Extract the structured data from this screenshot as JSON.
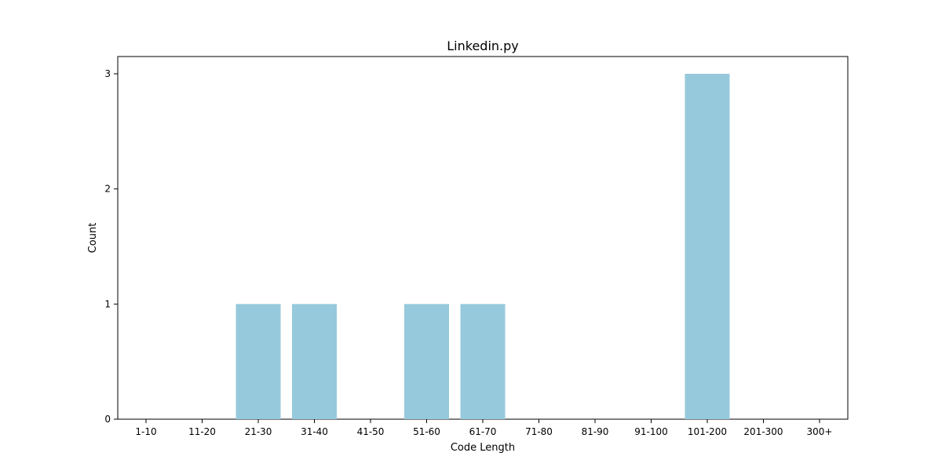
{
  "chart_data": {
    "type": "bar",
    "title": "Linkedin.py",
    "xlabel": "Code Length",
    "ylabel": "Count",
    "categories": [
      "1-10",
      "11-20",
      "21-30",
      "31-40",
      "41-50",
      "51-60",
      "61-70",
      "71-80",
      "81-90",
      "91-100",
      "101-200",
      "201-300",
      "300+"
    ],
    "values": [
      0,
      0,
      1,
      1,
      0,
      1,
      1,
      0,
      0,
      0,
      3,
      0,
      0
    ],
    "ylim": [
      0,
      3.15
    ],
    "yticks": [
      0,
      1,
      2,
      3
    ],
    "grid": false,
    "legend": "none",
    "bar_color": "#96c9dc"
  }
}
